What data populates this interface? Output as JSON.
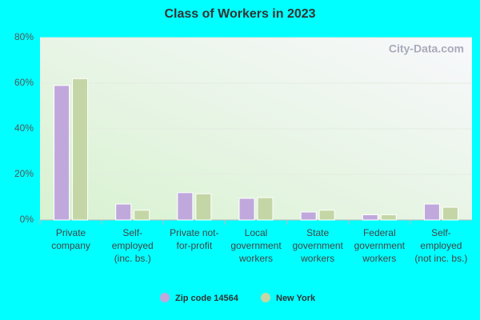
{
  "chart_data": {
    "type": "bar",
    "title": "Class of Workers in 2023",
    "watermark": "City-Data.com",
    "categories": [
      "Private company",
      "Self-employed (inc. bs.)",
      "Private not-for-profit",
      "Local government workers",
      "State government workers",
      "Federal government workers",
      "Self-employed (not inc. bs.)"
    ],
    "series": [
      {
        "name": "Zip code 14564",
        "color": "#c0a8dc",
        "values": [
          59,
          7,
          12,
          9.5,
          3.5,
          2.3,
          7
        ]
      },
      {
        "name": "New York",
        "color": "#c5d6a6",
        "values": [
          62,
          4.3,
          11.5,
          9.8,
          4.3,
          2.3,
          5.6
        ]
      }
    ],
    "ylim": [
      0,
      80
    ],
    "yticks": [
      {
        "value": 0,
        "label": "0%"
      },
      {
        "value": 20,
        "label": "20%"
      },
      {
        "value": 40,
        "label": "40%"
      },
      {
        "value": 60,
        "label": "60%"
      },
      {
        "value": 80,
        "label": "80%"
      }
    ],
    "grid": true
  }
}
